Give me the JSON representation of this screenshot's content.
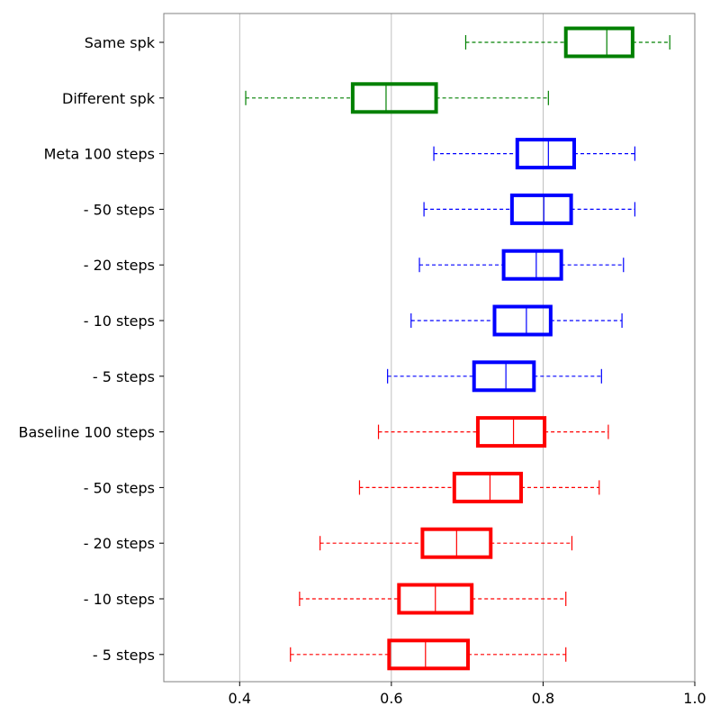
{
  "chart_data": {
    "type": "boxplot",
    "orientation": "horizontal",
    "title": "",
    "xlabel": "",
    "ylabel": "",
    "xlim": [
      0.3,
      1.0
    ],
    "xticks": [
      0.4,
      0.6,
      0.8,
      1.0
    ],
    "xtick_labels": [
      "0.4",
      "0.6",
      "0.8",
      "1.0"
    ],
    "grid": "vertical",
    "categories": [
      "Same spk",
      "Different spk",
      "Meta 100 steps",
      "- 50 steps",
      "- 20 steps",
      "- 10 steps",
      "- 5 steps",
      "Baseline 100 steps",
      "- 50 steps",
      "- 20 steps",
      "- 10 steps",
      "- 5 steps"
    ],
    "boxes": [
      {
        "whislo": 0.698,
        "q1": 0.83,
        "med": 0.884,
        "q3": 0.918,
        "whishi": 0.967,
        "color": "#008000"
      },
      {
        "whislo": 0.408,
        "q1": 0.549,
        "med": 0.593,
        "q3": 0.659,
        "whishi": 0.807,
        "color": "#008000"
      },
      {
        "whislo": 0.656,
        "q1": 0.766,
        "med": 0.807,
        "q3": 0.841,
        "whishi": 0.921,
        "color": "#0000ff"
      },
      {
        "whislo": 0.643,
        "q1": 0.759,
        "med": 0.801,
        "q3": 0.837,
        "whishi": 0.921,
        "color": "#0000ff"
      },
      {
        "whislo": 0.637,
        "q1": 0.748,
        "med": 0.791,
        "q3": 0.824,
        "whishi": 0.906,
        "color": "#0000ff"
      },
      {
        "whislo": 0.626,
        "q1": 0.736,
        "med": 0.778,
        "q3": 0.81,
        "whishi": 0.904,
        "color": "#0000ff"
      },
      {
        "whislo": 0.595,
        "q1": 0.709,
        "med": 0.751,
        "q3": 0.788,
        "whishi": 0.877,
        "color": "#0000ff"
      },
      {
        "whislo": 0.583,
        "q1": 0.714,
        "med": 0.761,
        "q3": 0.802,
        "whishi": 0.886,
        "color": "#ff0000"
      },
      {
        "whislo": 0.558,
        "q1": 0.683,
        "med": 0.73,
        "q3": 0.771,
        "whishi": 0.874,
        "color": "#ff0000"
      },
      {
        "whislo": 0.506,
        "q1": 0.641,
        "med": 0.686,
        "q3": 0.731,
        "whishi": 0.838,
        "color": "#ff0000"
      },
      {
        "whislo": 0.479,
        "q1": 0.61,
        "med": 0.658,
        "q3": 0.706,
        "whishi": 0.83,
        "color": "#ff0000"
      },
      {
        "whislo": 0.467,
        "q1": 0.597,
        "med": 0.645,
        "q3": 0.701,
        "whishi": 0.83,
        "color": "#ff0000"
      }
    ]
  }
}
